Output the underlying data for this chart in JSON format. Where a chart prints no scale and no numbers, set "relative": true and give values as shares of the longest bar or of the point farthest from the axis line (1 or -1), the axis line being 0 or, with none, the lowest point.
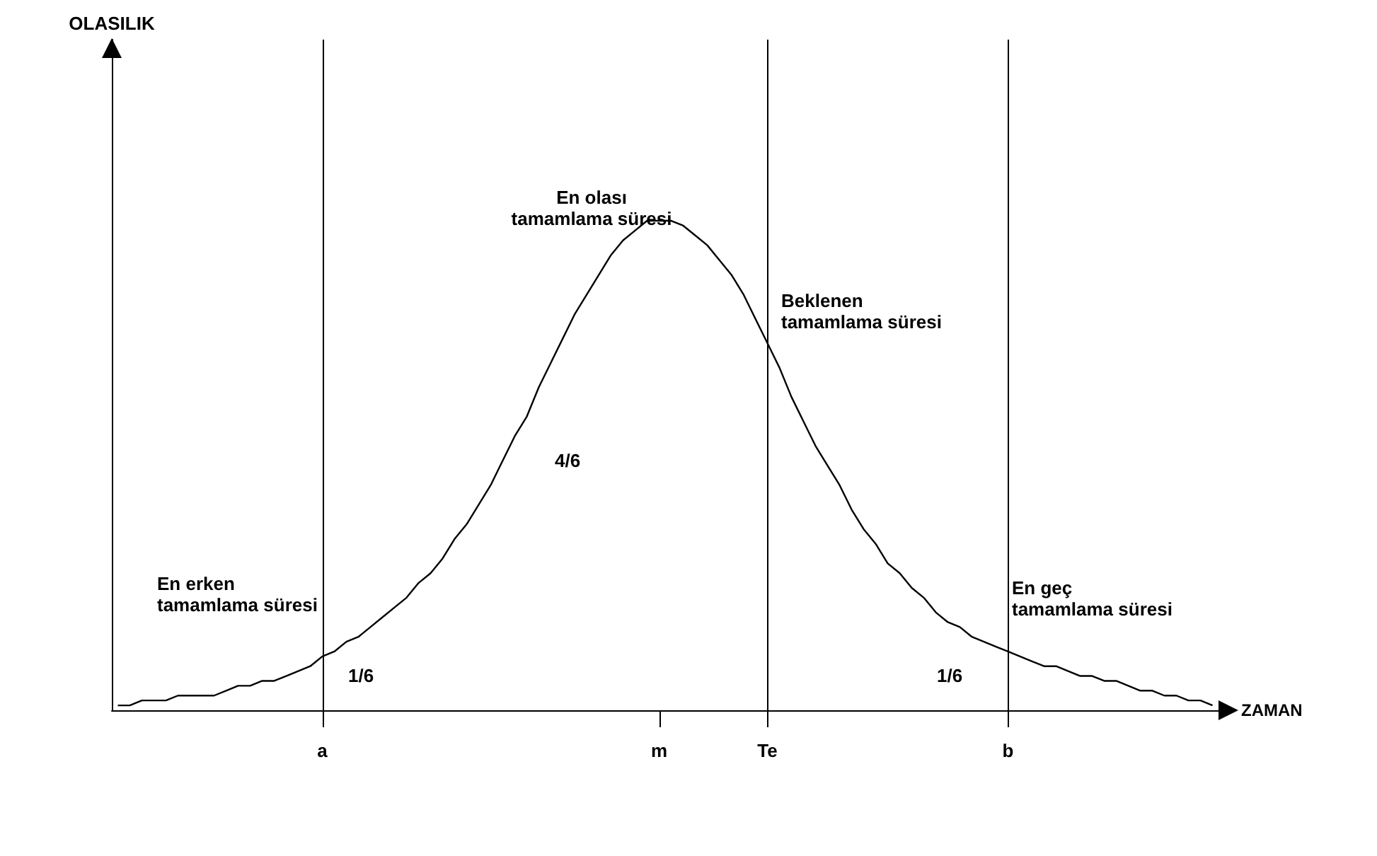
{
  "chart_data": {
    "type": "line",
    "relative": true,
    "xlabel": "ZAMAN",
    "grid": false,
    "marker": "none",
    "line_style": "solid",
    "categories": [
      null,
      null,
      null,
      null,
      null,
      null,
      null,
      null,
      null,
      null,
      null,
      null,
      null,
      null,
      null,
      null,
      null,
      "a",
      null,
      null,
      null,
      null,
      null,
      null,
      null,
      null,
      null,
      null,
      null,
      null,
      null,
      null,
      null,
      null,
      null,
      null,
      null,
      null,
      null,
      null,
      null,
      null,
      null,
      null,
      null,
      "m",
      null,
      null,
      null,
      null,
      null,
      null,
      null,
      null,
      "Te",
      null,
      null,
      null,
      null,
      null,
      null,
      null,
      null,
      null,
      null,
      null,
      null,
      null,
      null,
      null,
      null,
      null,
      null,
      null,
      "b",
      null,
      null,
      null,
      null,
      null,
      null,
      null,
      null,
      null,
      null,
      null,
      null,
      null,
      null,
      null,
      null,
      null
    ],
    "series": [
      {
        "color": "#000000",
        "values": [
          0.01,
          0.01,
          0.02,
          0.02,
          0.02,
          0.03,
          0.03,
          0.03,
          0.03,
          0.04,
          0.05,
          0.05,
          0.06,
          0.06,
          0.07,
          0.08,
          0.09,
          0.11,
          0.12,
          0.14,
          0.15,
          0.17,
          0.19,
          0.21,
          0.23,
          0.26,
          0.28,
          0.31,
          0.35,
          0.38,
          0.42,
          0.46,
          0.51,
          0.56,
          0.6,
          0.66,
          0.71,
          0.76,
          0.81,
          0.85,
          0.89,
          0.93,
          0.96,
          0.98,
          1.0,
          1.0,
          1.0,
          0.99,
          0.97,
          0.95,
          0.92,
          0.89,
          0.85,
          0.8,
          0.75,
          0.7,
          0.64,
          0.59,
          0.54,
          0.5,
          0.46,
          0.41,
          0.37,
          0.34,
          0.3,
          0.28,
          0.25,
          0.23,
          0.2,
          0.18,
          0.17,
          0.15,
          0.14,
          0.13,
          0.12,
          0.11,
          0.1,
          0.09,
          0.09,
          0.08,
          0.07,
          0.07,
          0.06,
          0.06,
          0.05,
          0.04,
          0.04,
          0.03,
          0.03,
          0.02,
          0.02,
          0.01
        ]
      }
    ],
    "ref_lines": [
      {
        "axis": "x",
        "value": "a"
      },
      {
        "axis": "x",
        "value": "Te"
      },
      {
        "axis": "x",
        "value": "b"
      }
    ],
    "annotations": [
      "En olası\ntamamlama süresi",
      "Beklenen\ntamamlama süresi",
      "En erken\ntamamlama süresi",
      "En geç\ntamamlama süresi",
      "4/6",
      "1/6",
      "1/6",
      "OLASILIK"
    ]
  }
}
